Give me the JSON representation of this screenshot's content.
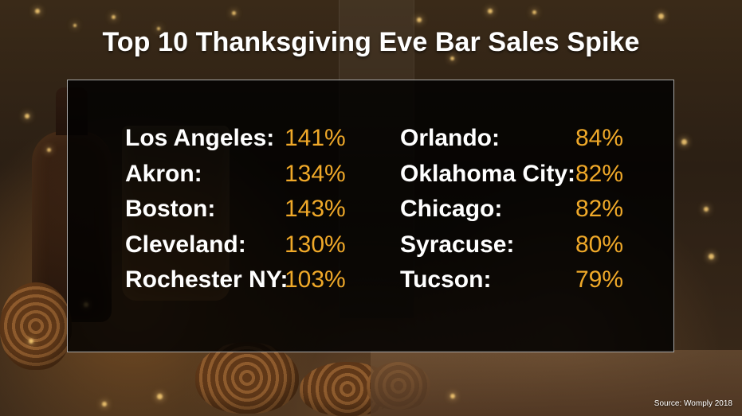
{
  "title": "Top 10 Thanksgiving Eve Bar Sales Spike",
  "colors": {
    "title_text": "#ffffff",
    "city_text": "#ffffff",
    "percent_text": "#f0a929",
    "panel_background": "#000000",
    "panel_border": "#ffffff"
  },
  "left_column": [
    {
      "city": "Los Angeles:",
      "percent": "141%"
    },
    {
      "city": "Akron:",
      "percent": "134%"
    },
    {
      "city": "Boston:",
      "percent": "143%"
    },
    {
      "city": "Cleveland:",
      "percent": "130%"
    },
    {
      "city": "Rochester NY:",
      "percent": "103%"
    }
  ],
  "right_column": [
    {
      "city": "Orlando:",
      "percent": "84%"
    },
    {
      "city": "Oklahoma City:",
      "percent": "82%"
    },
    {
      "city": "Chicago:",
      "percent": "82%"
    },
    {
      "city": "Syracuse:",
      "percent": "80%"
    },
    {
      "city": "Tucson:",
      "percent": "79%"
    }
  ],
  "source": "Source: Womply 2018"
}
